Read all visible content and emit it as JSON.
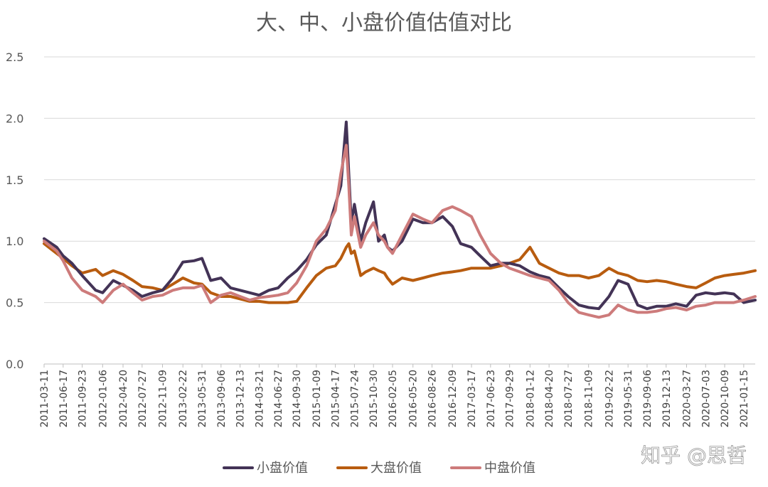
{
  "watermark": "知乎 @思哲",
  "colors": {
    "small": "#433356",
    "large": "#b85c0f",
    "mid": "#cd7b7b",
    "grid": "#d9d9d9",
    "text": "#595959"
  },
  "chart_data": {
    "type": "line",
    "title": "大、中、小盘价值估值对比",
    "xlabel": "",
    "ylabel": "",
    "ylim": [
      0,
      2.5
    ],
    "yticks": [
      "0.0",
      "0.5",
      "1.0",
      "1.5",
      "2.0",
      "2.5"
    ],
    "grid": true,
    "legend_position": "bottom",
    "x_ticks": [
      "2011-03-11",
      "2011-06-17",
      "2011-09-23",
      "2012-01-06",
      "2012-04-20",
      "2012-07-27",
      "2012-11-09",
      "2013-02-22",
      "2013-05-31",
      "2013-09-06",
      "2013-12-13",
      "2014-03-21",
      "2014-06-27",
      "2014-09-30",
      "2015-01-09",
      "2015-04-17",
      "2015-07-24",
      "2015-10-30",
      "2016-02-05",
      "2016-05-20",
      "2016-08-26",
      "2016-12-09",
      "2017-03-17",
      "2017-06-23",
      "2017-09-29",
      "2018-01-12",
      "2018-04-20",
      "2018-07-27",
      "2018-11-09",
      "2019-02-22",
      "2019-05-31",
      "2019-09-06",
      "2019-12-13",
      "2020-03-27",
      "2020-07-03",
      "2020-10-09",
      "2021-01-15"
    ],
    "x": [
      "2011-03-11",
      "2011-05-15",
      "2011-06-17",
      "2011-08-01",
      "2011-09-23",
      "2011-12-01",
      "2012-01-06",
      "2012-03-01",
      "2012-04-20",
      "2012-06-10",
      "2012-07-27",
      "2012-09-20",
      "2012-11-09",
      "2013-01-01",
      "2013-02-22",
      "2013-04-20",
      "2013-05-31",
      "2013-07-15",
      "2013-09-06",
      "2013-10-25",
      "2013-12-13",
      "2014-02-01",
      "2014-03-21",
      "2014-05-10",
      "2014-06-27",
      "2014-08-15",
      "2014-09-30",
      "2014-11-20",
      "2015-01-09",
      "2015-03-01",
      "2015-04-17",
      "2015-05-15",
      "2015-06-12",
      "2015-06-25",
      "2015-07-08",
      "2015-07-24",
      "2015-08-25",
      "2015-09-20",
      "2015-10-30",
      "2015-11-25",
      "2015-12-25",
      "2016-01-10",
      "2016-02-05",
      "2016-03-25",
      "2016-05-20",
      "2016-07-10",
      "2016-08-26",
      "2016-10-20",
      "2016-12-09",
      "2017-01-20",
      "2017-03-17",
      "2017-05-01",
      "2017-06-23",
      "2017-08-15",
      "2017-09-29",
      "2017-11-20",
      "2018-01-12",
      "2018-03-01",
      "2018-04-20",
      "2018-06-10",
      "2018-07-27",
      "2018-09-20",
      "2018-11-09",
      "2019-01-01",
      "2019-02-22",
      "2019-04-10",
      "2019-05-31",
      "2019-07-20",
      "2019-09-06",
      "2019-10-25",
      "2019-12-13",
      "2020-02-01",
      "2020-03-27",
      "2020-05-15",
      "2020-07-03",
      "2020-08-20",
      "2020-10-09",
      "2020-11-25",
      "2021-01-15",
      "2021-03-15"
    ],
    "series": [
      {
        "name": "小盘价值",
        "color_key": "small",
        "values": [
          1.02,
          0.95,
          0.88,
          0.82,
          0.72,
          0.6,
          0.58,
          0.68,
          0.64,
          0.6,
          0.55,
          0.58,
          0.6,
          0.7,
          0.83,
          0.84,
          0.86,
          0.68,
          0.7,
          0.62,
          0.6,
          0.58,
          0.56,
          0.6,
          0.62,
          0.7,
          0.76,
          0.85,
          0.97,
          1.05,
          1.3,
          1.45,
          1.97,
          1.55,
          1.15,
          1.3,
          1.0,
          1.15,
          1.32,
          1.0,
          1.05,
          0.95,
          0.92,
          1.0,
          1.18,
          1.15,
          1.15,
          1.2,
          1.12,
          0.98,
          0.95,
          0.88,
          0.8,
          0.82,
          0.82,
          0.8,
          0.75,
          0.72,
          0.7,
          0.62,
          0.55,
          0.48,
          0.46,
          0.45,
          0.55,
          0.68,
          0.65,
          0.48,
          0.45,
          0.47,
          0.47,
          0.49,
          0.47,
          0.56,
          0.58,
          0.57,
          0.58,
          0.57,
          0.5,
          0.52
        ]
      },
      {
        "name": "大盘价值",
        "color_key": "large",
        "values": [
          0.98,
          0.9,
          0.86,
          0.8,
          0.74,
          0.77,
          0.72,
          0.76,
          0.73,
          0.68,
          0.63,
          0.62,
          0.6,
          0.65,
          0.7,
          0.66,
          0.65,
          0.58,
          0.55,
          0.55,
          0.53,
          0.51,
          0.51,
          0.5,
          0.5,
          0.5,
          0.51,
          0.62,
          0.72,
          0.78,
          0.8,
          0.86,
          0.95,
          0.98,
          0.9,
          0.92,
          0.72,
          0.75,
          0.78,
          0.76,
          0.74,
          0.7,
          0.65,
          0.7,
          0.68,
          0.7,
          0.72,
          0.74,
          0.75,
          0.76,
          0.78,
          0.78,
          0.78,
          0.8,
          0.82,
          0.85,
          0.95,
          0.82,
          0.78,
          0.74,
          0.72,
          0.72,
          0.7,
          0.72,
          0.78,
          0.74,
          0.72,
          0.68,
          0.67,
          0.68,
          0.67,
          0.65,
          0.63,
          0.62,
          0.66,
          0.7,
          0.72,
          0.73,
          0.74,
          0.76
        ]
      },
      {
        "name": "中盘价值",
        "color_key": "mid",
        "values": [
          1.0,
          0.92,
          0.84,
          0.7,
          0.6,
          0.55,
          0.5,
          0.6,
          0.65,
          0.58,
          0.52,
          0.55,
          0.56,
          0.6,
          0.62,
          0.62,
          0.64,
          0.5,
          0.56,
          0.58,
          0.55,
          0.52,
          0.54,
          0.55,
          0.56,
          0.58,
          0.66,
          0.8,
          1.0,
          1.1,
          1.25,
          1.55,
          1.78,
          1.45,
          1.05,
          1.2,
          0.95,
          1.05,
          1.15,
          1.05,
          1.0,
          0.95,
          0.9,
          1.05,
          1.22,
          1.18,
          1.15,
          1.25,
          1.28,
          1.25,
          1.2,
          1.05,
          0.9,
          0.82,
          0.78,
          0.75,
          0.72,
          0.7,
          0.68,
          0.6,
          0.5,
          0.42,
          0.4,
          0.38,
          0.4,
          0.48,
          0.44,
          0.42,
          0.42,
          0.43,
          0.45,
          0.46,
          0.44,
          0.47,
          0.48,
          0.5,
          0.5,
          0.5,
          0.52,
          0.55
        ]
      }
    ]
  }
}
